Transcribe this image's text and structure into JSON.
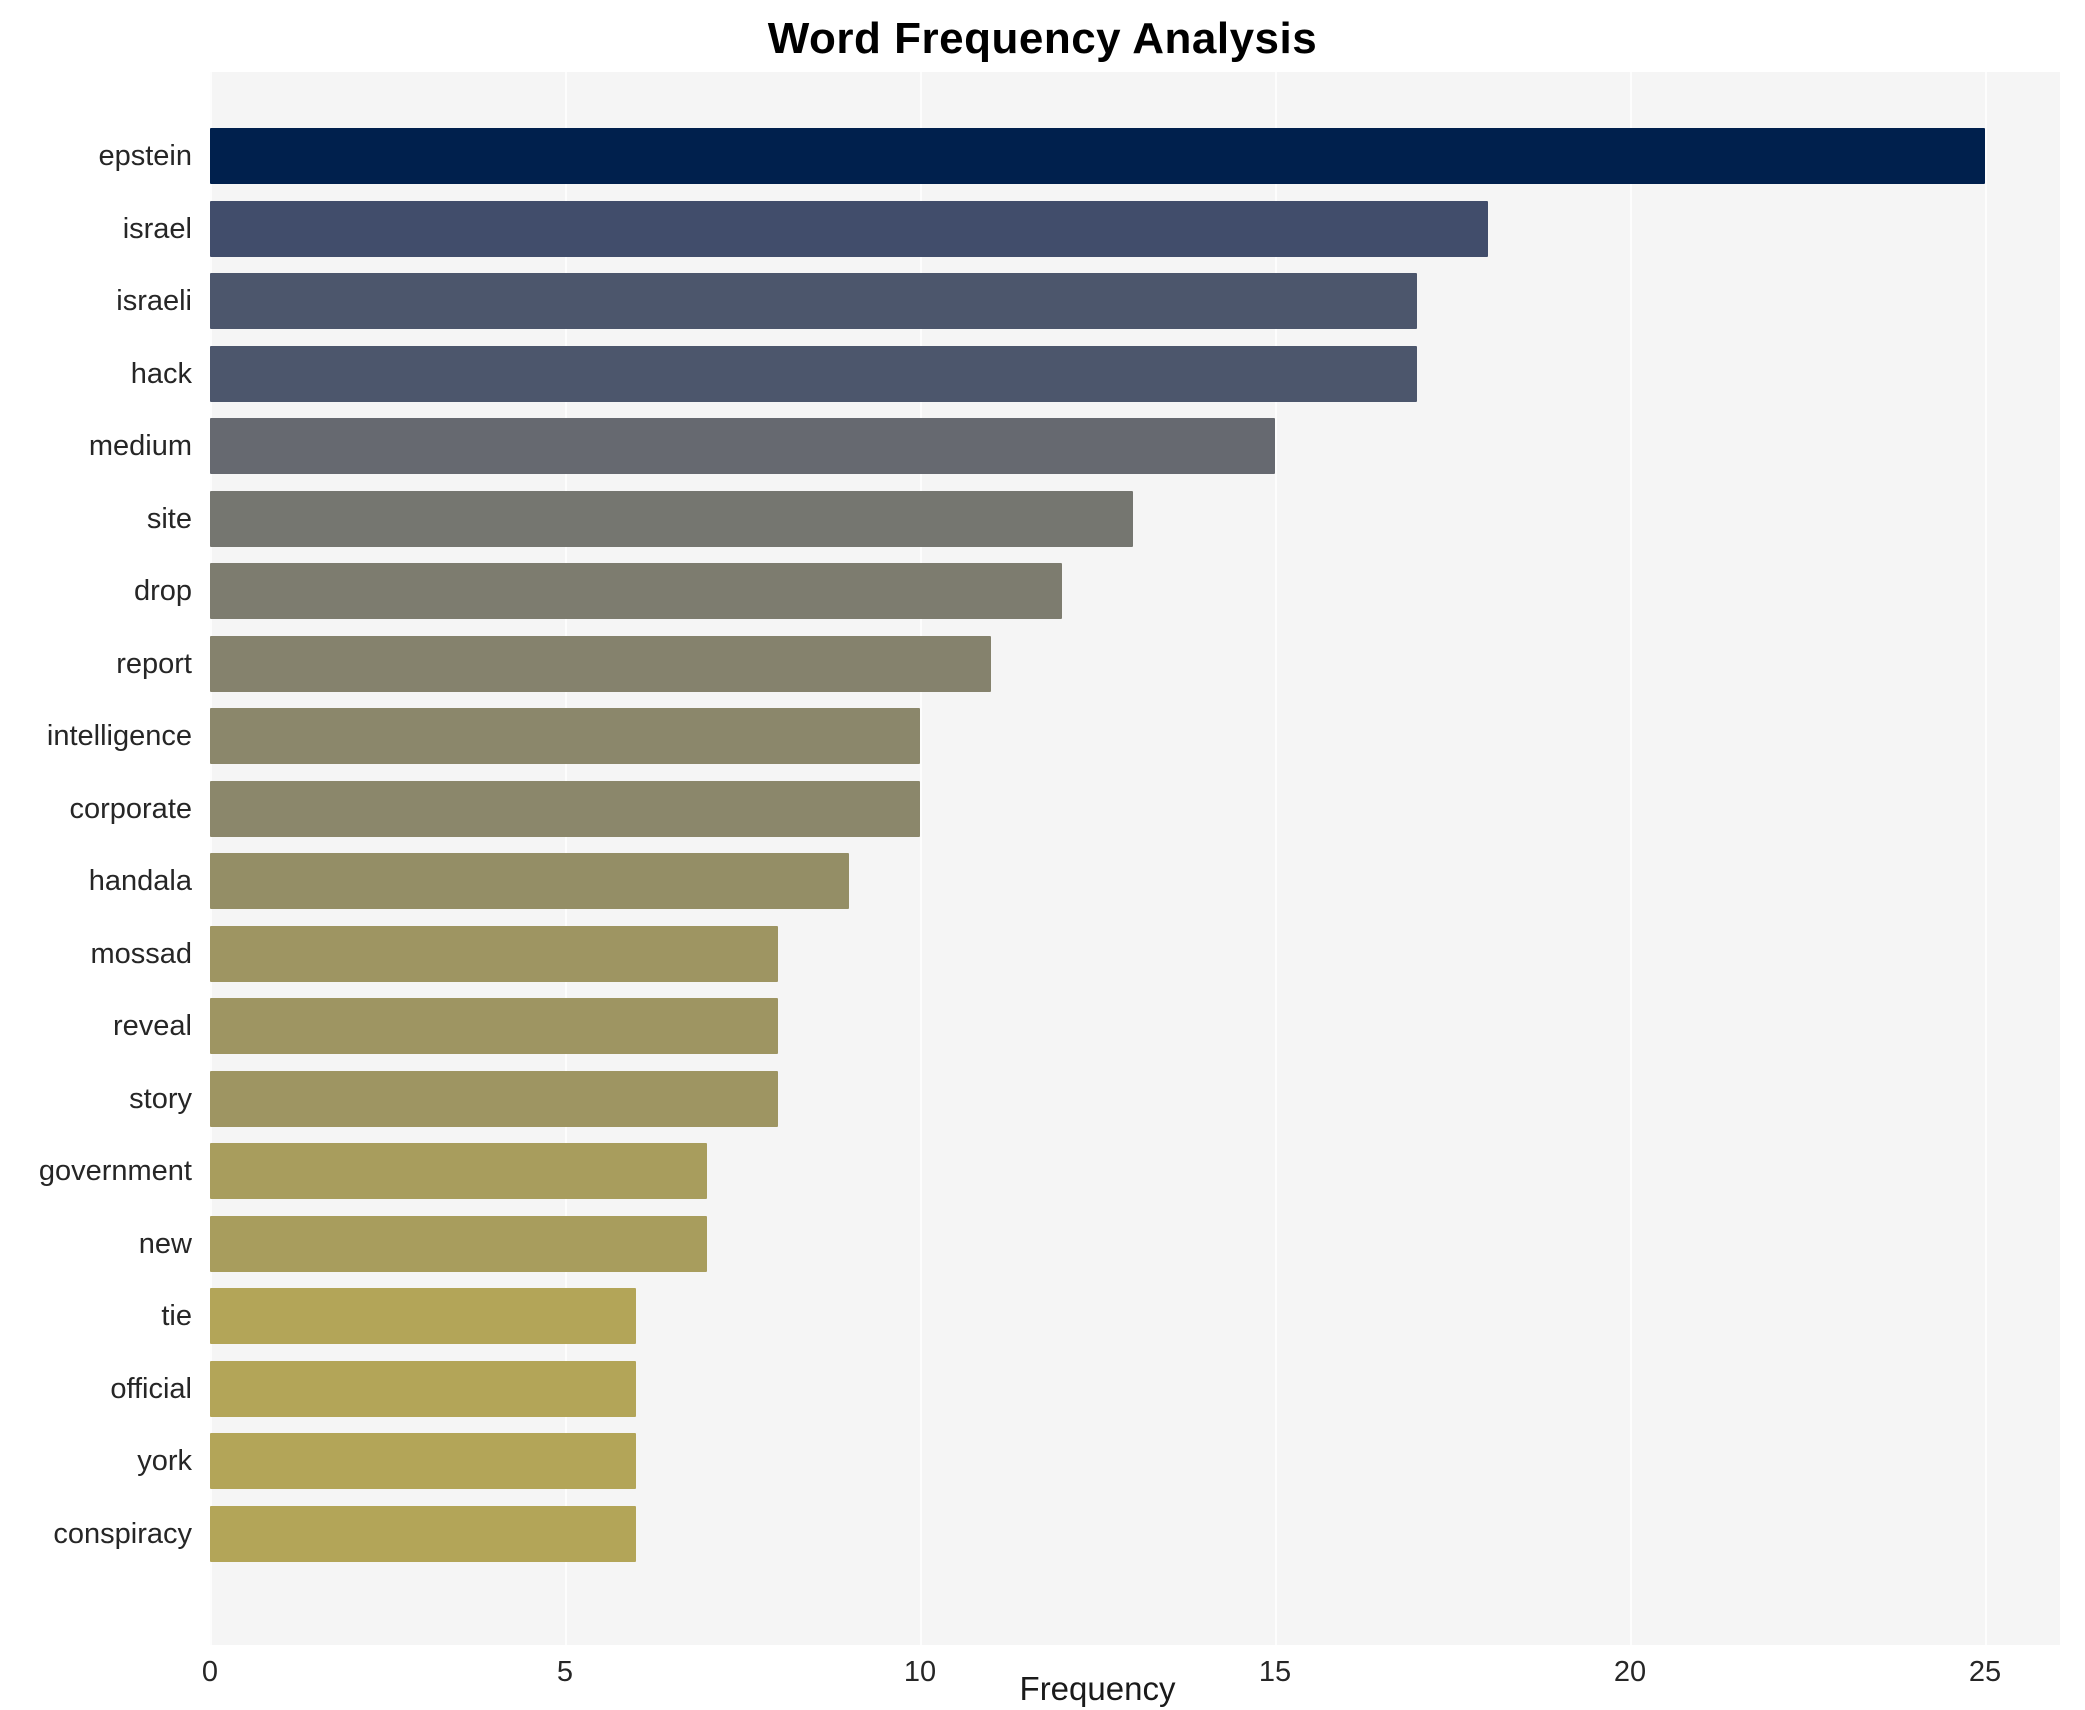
{
  "title": "Word Frequency Analysis",
  "colors": {
    "plot_background": "#f5f5f5",
    "gridline": "#fdfdfd",
    "title_text": "#000000",
    "label_text": "#262626"
  },
  "x_axis": {
    "label": "Frequency",
    "ticks": [
      0,
      5,
      10,
      15,
      20,
      25
    ],
    "tick_labels": [
      "0",
      "5",
      "10",
      "15",
      "20",
      "25"
    ]
  },
  "chart_data": {
    "type": "bar",
    "orientation": "horizontal",
    "title": "Word Frequency Analysis",
    "xlabel": "Frequency",
    "ylabel": "",
    "xlim": [
      0,
      25
    ],
    "grid": true,
    "legend": false,
    "categories": [
      "epstein",
      "israel",
      "israeli",
      "hack",
      "medium",
      "site",
      "drop",
      "report",
      "intelligence",
      "corporate",
      "handala",
      "mossad",
      "reveal",
      "story",
      "government",
      "new",
      "tie",
      "official",
      "york",
      "conspiracy"
    ],
    "values": [
      25,
      18,
      17,
      17,
      15,
      13,
      12,
      11,
      10,
      10,
      9,
      8,
      8,
      8,
      7,
      7,
      6,
      6,
      6,
      6
    ],
    "bar_colors": [
      "#00204d",
      "#414d6b",
      "#4c566c",
      "#4c566c",
      "#666970",
      "#757670",
      "#7d7c6f",
      "#85826d",
      "#8b876b",
      "#8b876b",
      "#948e66",
      "#9e9562",
      "#9e9562",
      "#9e9562",
      "#a89d5d",
      "#a89d5d",
      "#b3a558",
      "#b3a558",
      "#b3a558",
      "#b3a558"
    ],
    "plot_background": "#f5f5f5"
  }
}
